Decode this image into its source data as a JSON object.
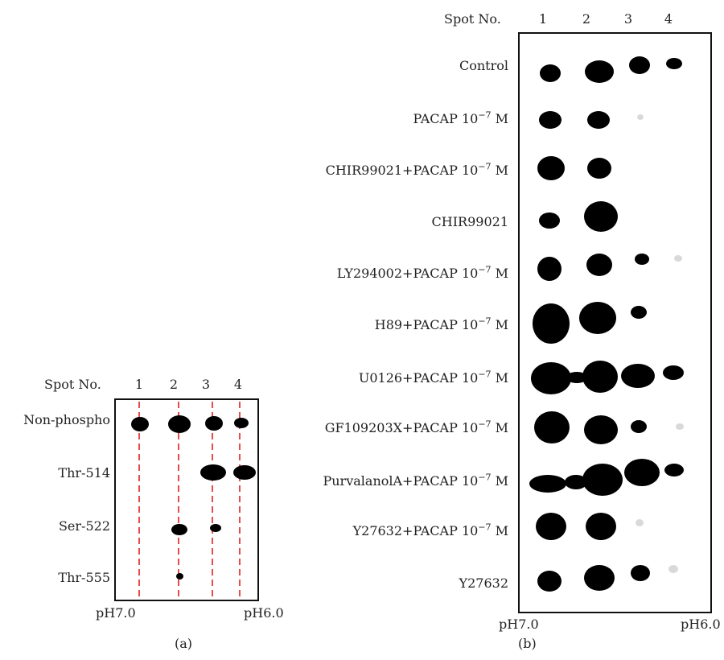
{
  "panel_a": {
    "spot_header": "Spot No.",
    "spot_numbers": [
      "1",
      "2",
      "3",
      "4"
    ],
    "rows": [
      "Non-phospho",
      "Thr-514",
      "Ser-522",
      "Thr-555"
    ],
    "ph_left": "pH7.0",
    "ph_right": "pH6.0",
    "caption": "(a)",
    "guide_color": "#e02020"
  },
  "panel_b": {
    "spot_header": "Spot No.",
    "spot_numbers": [
      "1",
      "2",
      "3",
      "4"
    ],
    "rows": [
      {
        "main": "Control",
        "exp": "",
        "unit": ""
      },
      {
        "main": "PACAP 10",
        "exp": "−7",
        "unit": " M"
      },
      {
        "main": "CHIR99021+PACAP 10",
        "exp": "−7",
        "unit": " M"
      },
      {
        "main": "CHIR99021",
        "exp": "",
        "unit": ""
      },
      {
        "main": "LY294002+PACAP 10",
        "exp": "−7",
        "unit": " M"
      },
      {
        "main": "H89+PACAP 10",
        "exp": "−7",
        "unit": " M"
      },
      {
        "main": "U0126+PACAP 10",
        "exp": "−7",
        "unit": " M"
      },
      {
        "main": "GF109203X+PACAP 10",
        "exp": "−7",
        "unit": " M"
      },
      {
        "main": "PurvalanolA+PACAP 10",
        "exp": "−7",
        "unit": " M"
      },
      {
        "main": "Y27632+PACAP 10",
        "exp": "−7",
        "unit": " M"
      },
      {
        "main": "Y27632",
        "exp": "",
        "unit": ""
      }
    ],
    "ph_left": "pH7.0",
    "ph_right": "pH6.0",
    "caption": "(b)"
  }
}
